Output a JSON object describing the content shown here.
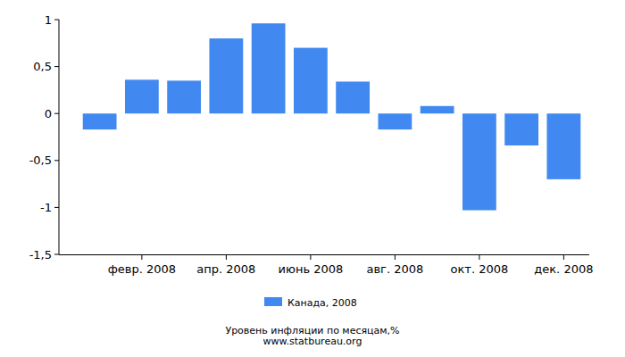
{
  "chart_data": {
    "type": "bar",
    "title": "Уровень инфляции по месяцам,%",
    "subtitle": "www.statbureau.org",
    "categories": [
      null,
      "февр. 2008",
      null,
      "апр. 2008",
      null,
      "июнь 2008",
      null,
      "авг. 2008",
      null,
      "окт. 2008",
      null,
      "дек. 2008"
    ],
    "series": [
      {
        "name": "Канада, 2008",
        "color": "#4189f0",
        "values": [
          -0.17,
          0.36,
          0.35,
          0.8,
          0.96,
          0.7,
          0.34,
          -0.17,
          0.08,
          -1.03,
          -0.34,
          -0.7
        ]
      }
    ],
    "ylim": [
      -1.5,
      1
    ],
    "yticks": [
      {
        "value": -1.5,
        "label": "-1,5"
      },
      -1,
      {
        "value": -0.5,
        "label": "-0,5"
      },
      0,
      {
        "value": 0.5,
        "label": "0,5"
      },
      1
    ],
    "grid": false,
    "legend": "bottom"
  }
}
